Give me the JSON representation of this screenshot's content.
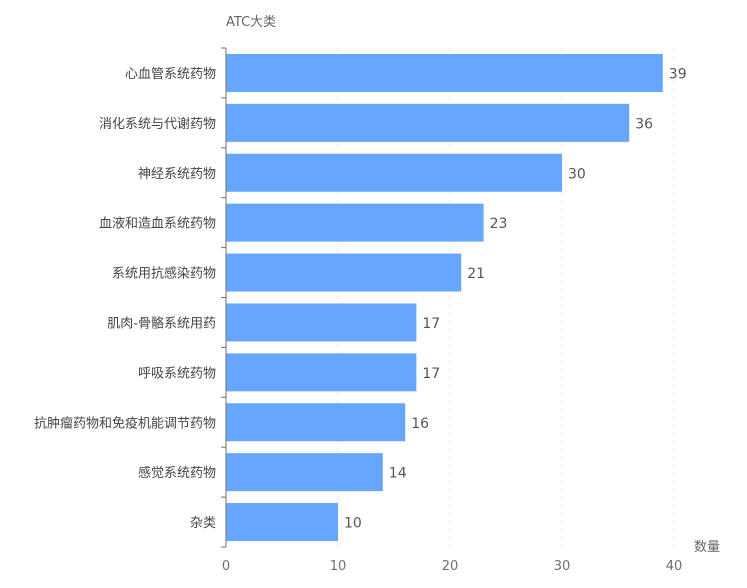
{
  "chart_data": {
    "type": "bar",
    "orientation": "horizontal",
    "ylabel": "ATC大类",
    "xlabel": "数量",
    "categories": [
      "心血管系统药物",
      "消化系统与代谢药物",
      "神经系统药物",
      "血液和造血系统药物",
      "系统用抗感染药物",
      "肌肉-骨骼系统用药",
      "呼吸系统药物",
      "抗肿瘤药物和免疫机能调节药物",
      "感觉系统药物",
      "杂类"
    ],
    "values": [
      39,
      36,
      30,
      23,
      21,
      17,
      17,
      16,
      14,
      10
    ],
    "xlim": [
      0,
      40
    ],
    "xticks": [
      0,
      10,
      20,
      30,
      40
    ],
    "grid": "vertical dashed",
    "bar_color": "#66a6ff",
    "data_labels": true
  }
}
